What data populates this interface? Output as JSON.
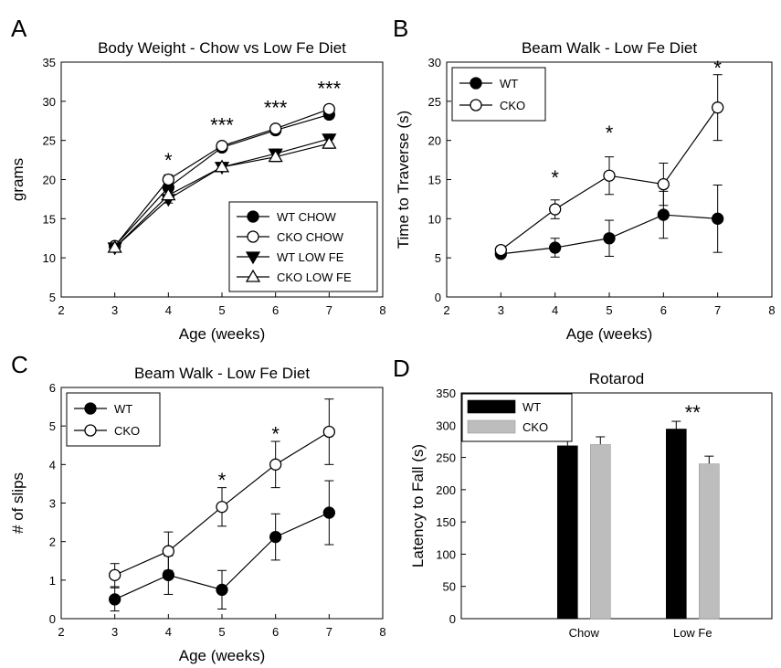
{
  "chart_data": [
    {
      "panel": "A",
      "type": "line",
      "title": "Body Weight - Chow vs Low Fe Diet",
      "xlabel": "Age (weeks)",
      "ylabel": "grams",
      "xlim": [
        2,
        8
      ],
      "ylim": [
        5,
        35
      ],
      "xticks": [
        2,
        3,
        4,
        5,
        6,
        7,
        8
      ],
      "yticks": [
        5,
        10,
        15,
        20,
        25,
        30,
        35
      ],
      "legend_position": "bottom-right",
      "x": [
        3,
        4,
        5,
        6,
        7
      ],
      "series": [
        {
          "name": "WT CHOW",
          "marker": "circle",
          "filled": true,
          "values": [
            11.5,
            19.0,
            24.1,
            26.3,
            28.3
          ],
          "errors": [
            0.4,
            0.6,
            0.5,
            0.5,
            0.5
          ]
        },
        {
          "name": "CKO CHOW",
          "marker": "circle",
          "filled": false,
          "values": [
            11.5,
            20.0,
            24.3,
            26.5,
            29.0
          ],
          "errors": [
            0.4,
            0.6,
            0.5,
            0.5,
            0.5
          ]
        },
        {
          "name": "WT LOW FE",
          "marker": "triangle-down",
          "filled": true,
          "values": [
            11.3,
            17.5,
            21.6,
            23.3,
            25.2
          ],
          "errors": [
            0.4,
            0.5,
            0.5,
            0.6,
            0.6
          ]
        },
        {
          "name": "CKO LOW FE",
          "marker": "triangle-up",
          "filled": false,
          "values": [
            11.3,
            18.0,
            21.6,
            22.9,
            24.6
          ],
          "errors": [
            0.4,
            0.5,
            0.5,
            0.6,
            0.6
          ]
        }
      ],
      "significance": [
        {
          "x": 4,
          "y": 22.5,
          "label": "*"
        },
        {
          "x": 5,
          "y": 27.0,
          "label": "***"
        },
        {
          "x": 6,
          "y": 29.2,
          "label": "***"
        },
        {
          "x": 7,
          "y": 31.7,
          "label": "***"
        }
      ]
    },
    {
      "panel": "B",
      "type": "line",
      "title": "Beam Walk - Low Fe Diet",
      "xlabel": "Age (weeks)",
      "ylabel": "Time to Traverse (s)",
      "xlim": [
        2,
        8
      ],
      "ylim": [
        0,
        30
      ],
      "xticks": [
        2,
        3,
        4,
        5,
        6,
        7,
        8
      ],
      "yticks": [
        0,
        5,
        10,
        15,
        20,
        25,
        30
      ],
      "legend_position": "top-left",
      "x": [
        3,
        4,
        5,
        6,
        7
      ],
      "series": [
        {
          "name": "WT",
          "marker": "circle",
          "filled": true,
          "values": [
            5.5,
            6.3,
            7.5,
            10.5,
            10.0
          ],
          "errors": [
            0.4,
            1.2,
            2.3,
            3.0,
            4.3
          ]
        },
        {
          "name": "CKO",
          "marker": "circle",
          "filled": false,
          "values": [
            6.0,
            11.2,
            15.5,
            14.4,
            24.2
          ],
          "errors": [
            0.5,
            1.2,
            2.4,
            2.7,
            4.2
          ]
        }
      ],
      "significance": [
        {
          "x": 4,
          "y": 15.3,
          "label": "*"
        },
        {
          "x": 5,
          "y": 21.0,
          "label": "*"
        },
        {
          "x": 7,
          "y": 29.3,
          "label": "*"
        }
      ]
    },
    {
      "panel": "C",
      "type": "line",
      "title": "Beam Walk - Low Fe Diet",
      "xlabel": "Age (weeks)",
      "ylabel": "# of slips",
      "xlim": [
        2,
        8
      ],
      "ylim": [
        0,
        6
      ],
      "xticks": [
        2,
        3,
        4,
        5,
        6,
        7,
        8
      ],
      "yticks": [
        0,
        1,
        2,
        3,
        4,
        5,
        6
      ],
      "legend_position": "top-left",
      "x": [
        3,
        4,
        5,
        6,
        7
      ],
      "series": [
        {
          "name": "WT",
          "marker": "circle",
          "filled": true,
          "values": [
            0.5,
            1.13,
            0.75,
            2.12,
            2.75
          ],
          "errors": [
            0.3,
            0.5,
            0.5,
            0.6,
            0.83
          ]
        },
        {
          "name": "CKO",
          "marker": "circle",
          "filled": false,
          "values": [
            1.13,
            1.75,
            2.9,
            4.0,
            4.85
          ],
          "errors": [
            0.3,
            0.5,
            0.5,
            0.6,
            0.85
          ]
        }
      ],
      "significance": [
        {
          "x": 5,
          "y": 3.6,
          "label": "*"
        },
        {
          "x": 6,
          "y": 4.8,
          "label": "*"
        }
      ]
    },
    {
      "panel": "D",
      "type": "bar",
      "title": "Rotarod",
      "xlabel": "",
      "ylabel": "Latency to Fall (s)",
      "ylim": [
        0,
        350
      ],
      "yticks": [
        0,
        50,
        100,
        150,
        200,
        250,
        300,
        350
      ],
      "legend_position": "top-left",
      "categories": [
        "Chow",
        "Low Fe"
      ],
      "series": [
        {
          "name": "WT",
          "color": "#000000",
          "values": [
            268,
            294
          ],
          "errors": [
            10,
            12
          ]
        },
        {
          "name": "CKO",
          "color": "#bdbdbd",
          "values": [
            270,
            240
          ],
          "errors": [
            12,
            12
          ]
        }
      ],
      "significance": [
        {
          "category": "Low Fe",
          "y": 320,
          "label": "**"
        }
      ]
    }
  ]
}
